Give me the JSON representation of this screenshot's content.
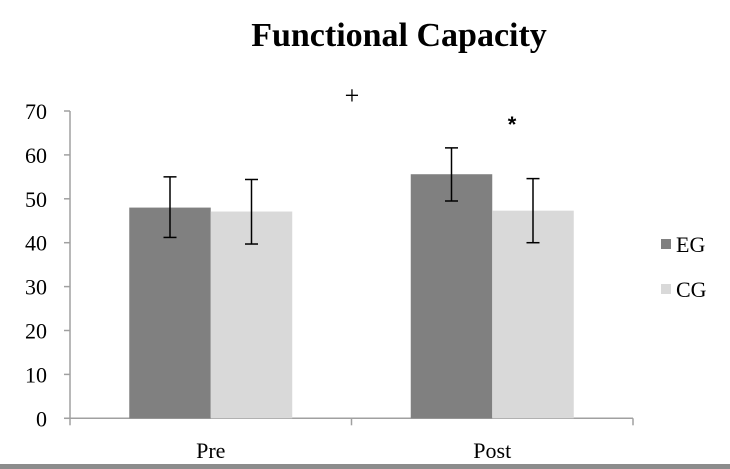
{
  "chart_data": {
    "type": "bar",
    "title": "Functional Capacity",
    "xlabel": "",
    "ylabel": "",
    "categories": [
      "Pre",
      "Post"
    ],
    "ylim": [
      0,
      70
    ],
    "yticks": [
      "0",
      "10",
      "20",
      "30",
      "40",
      "50",
      "60",
      "70"
    ],
    "grid": false,
    "legend_position": "right",
    "series": [
      {
        "name": "EG",
        "color": "#808080",
        "values": [
          48.0,
          55.6
        ],
        "error_low": [
          41.2,
          49.5
        ],
        "error_high": [
          55.0,
          61.6
        ]
      },
      {
        "name": "CG",
        "color": "#d9d9d9",
        "values": [
          47.1,
          47.3
        ],
        "error_low": [
          39.7,
          40.0
        ],
        "error_high": [
          54.4,
          54.6
        ]
      }
    ],
    "annotations": [
      {
        "text": "+",
        "near": "between Pre and Post, above"
      },
      {
        "text": "*",
        "near": "Post"
      }
    ]
  }
}
